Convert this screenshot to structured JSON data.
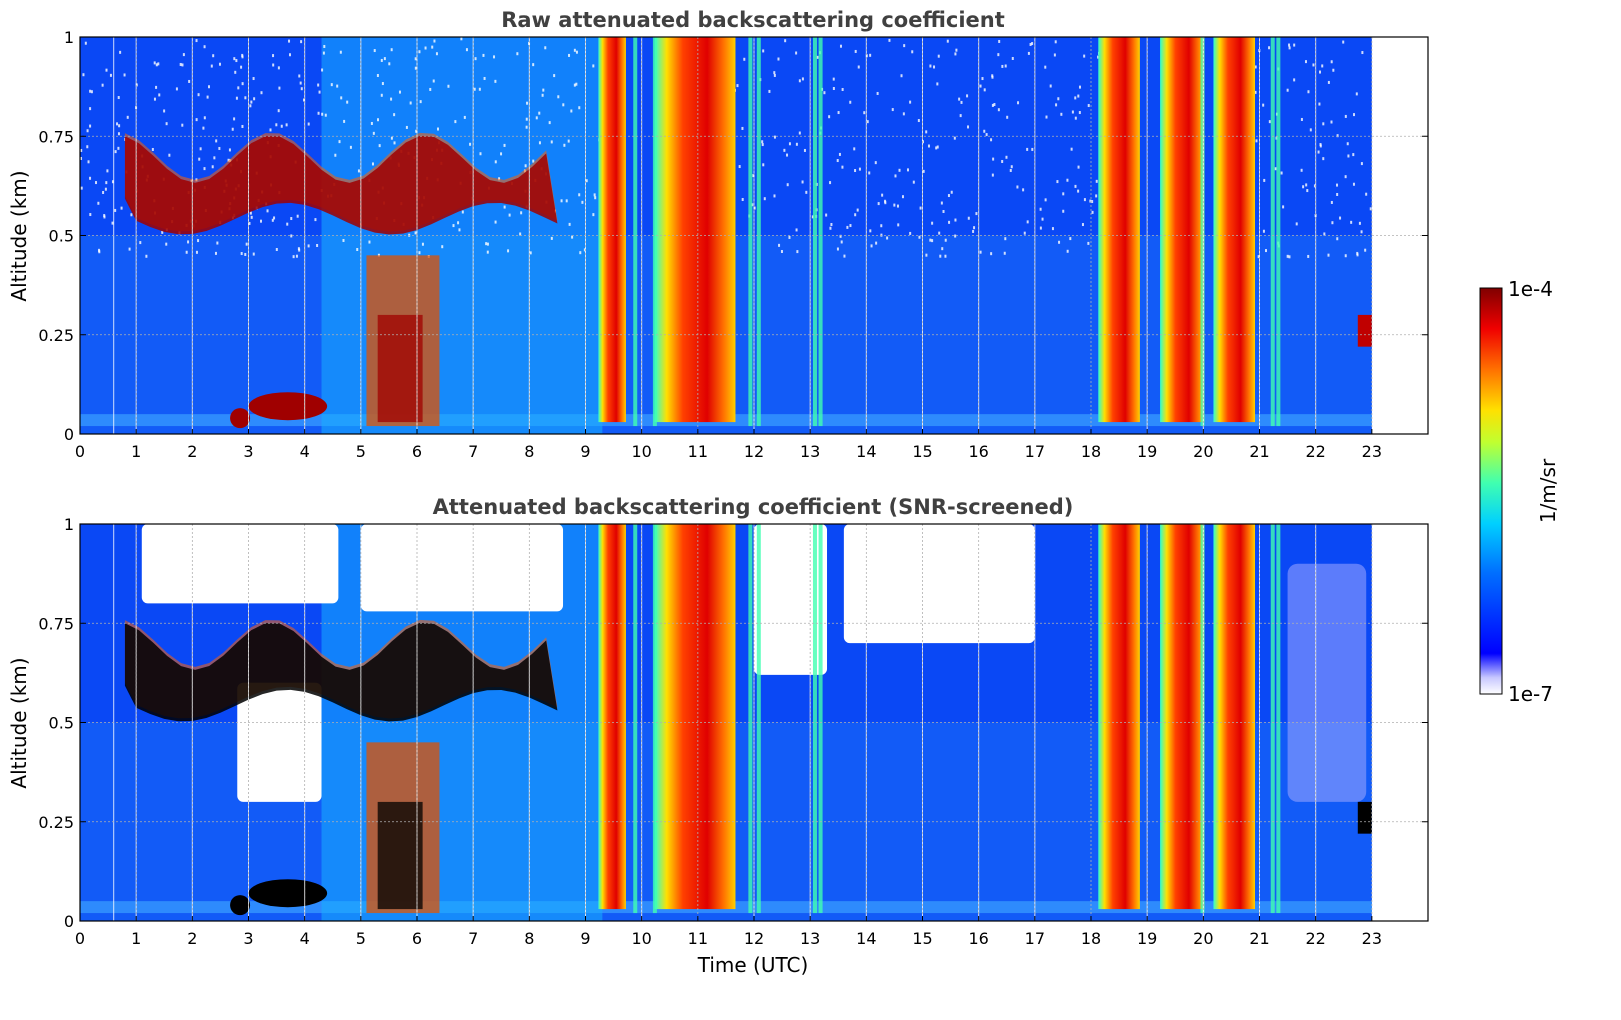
{
  "chart_data": [
    {
      "type": "heatmap",
      "title": "Raw attenuated backscattering coefficient",
      "xlabel": "",
      "ylabel": "Altitude (km)",
      "xlim": [
        0,
        24
      ],
      "ylim": [
        0,
        1
      ],
      "xticks": [
        "0",
        "1",
        "2",
        "3",
        "4",
        "5",
        "6",
        "7",
        "8",
        "9",
        "10",
        "11",
        "12",
        "13",
        "14",
        "15",
        "16",
        "17",
        "18",
        "19",
        "20",
        "21",
        "22",
        "23"
      ],
      "yticks": [
        "0",
        "0.25",
        "0.5",
        "0.75",
        "1"
      ],
      "grid": true,
      "data_end_time": 23,
      "screened": false,
      "features": [
        {
          "description": "strong backscatter columns (fog / low cloud, full height)",
          "time_ranges": [
            [
              9.35,
              9.6
            ],
            [
              10.35,
              11.55
            ],
            [
              18.25,
              18.75
            ],
            [
              19.35,
              19.9
            ],
            [
              20.3,
              20.8
            ]
          ]
        },
        {
          "description": "cloud layer near 0.55-0.75 km",
          "time_range": [
            0.8,
            8.5
          ]
        },
        {
          "description": "low-level layer near 0.05-0.15 km",
          "time_range": [
            2.7,
            4.4
          ]
        },
        {
          "description": "thin layer near 0.25-0.3 km",
          "time_range": [
            22.75,
            23.0
          ]
        }
      ]
    },
    {
      "type": "heatmap",
      "title": "Attenuated backscattering coefficient (SNR-screened)",
      "xlabel": "Time (UTC)",
      "ylabel": "Altitude (km)",
      "xlim": [
        0,
        24
      ],
      "ylim": [
        0,
        1
      ],
      "xticks": [
        "0",
        "1",
        "2",
        "3",
        "4",
        "5",
        "6",
        "7",
        "8",
        "9",
        "10",
        "11",
        "12",
        "13",
        "14",
        "15",
        "16",
        "17",
        "18",
        "19",
        "20",
        "21",
        "22",
        "23"
      ],
      "yticks": [
        "0",
        "0.25",
        "0.5",
        "0.75",
        "1"
      ],
      "grid": true,
      "data_end_time": 23,
      "screened": true,
      "features": [
        {
          "description": "strong backscatter columns",
          "time_ranges": [
            [
              9.35,
              9.6
            ],
            [
              10.35,
              11.55
            ],
            [
              18.25,
              18.75
            ],
            [
              19.35,
              19.9
            ],
            [
              20.3,
              20.8
            ]
          ]
        },
        {
          "description": "cloud layer (saturated, black) near 0.55-0.75 km",
          "time_range": [
            0.8,
            8.5
          ]
        },
        {
          "description": "screened-out (white) regions above cloud and at 13.5-17 h aloft",
          "time_range": [
            1.0,
            17.0
          ]
        }
      ]
    }
  ],
  "colorbar": {
    "label": "1/m/sr",
    "max_label": "1e-4",
    "min_label": "1e-7",
    "scale": "log",
    "range": [
      1e-07,
      0.0001
    ],
    "colormap": "jet"
  },
  "colors": {
    "background": "#0a3cf0",
    "cloud": "#a00000",
    "saturated": "#000000",
    "grid": "#b0b0b0"
  }
}
